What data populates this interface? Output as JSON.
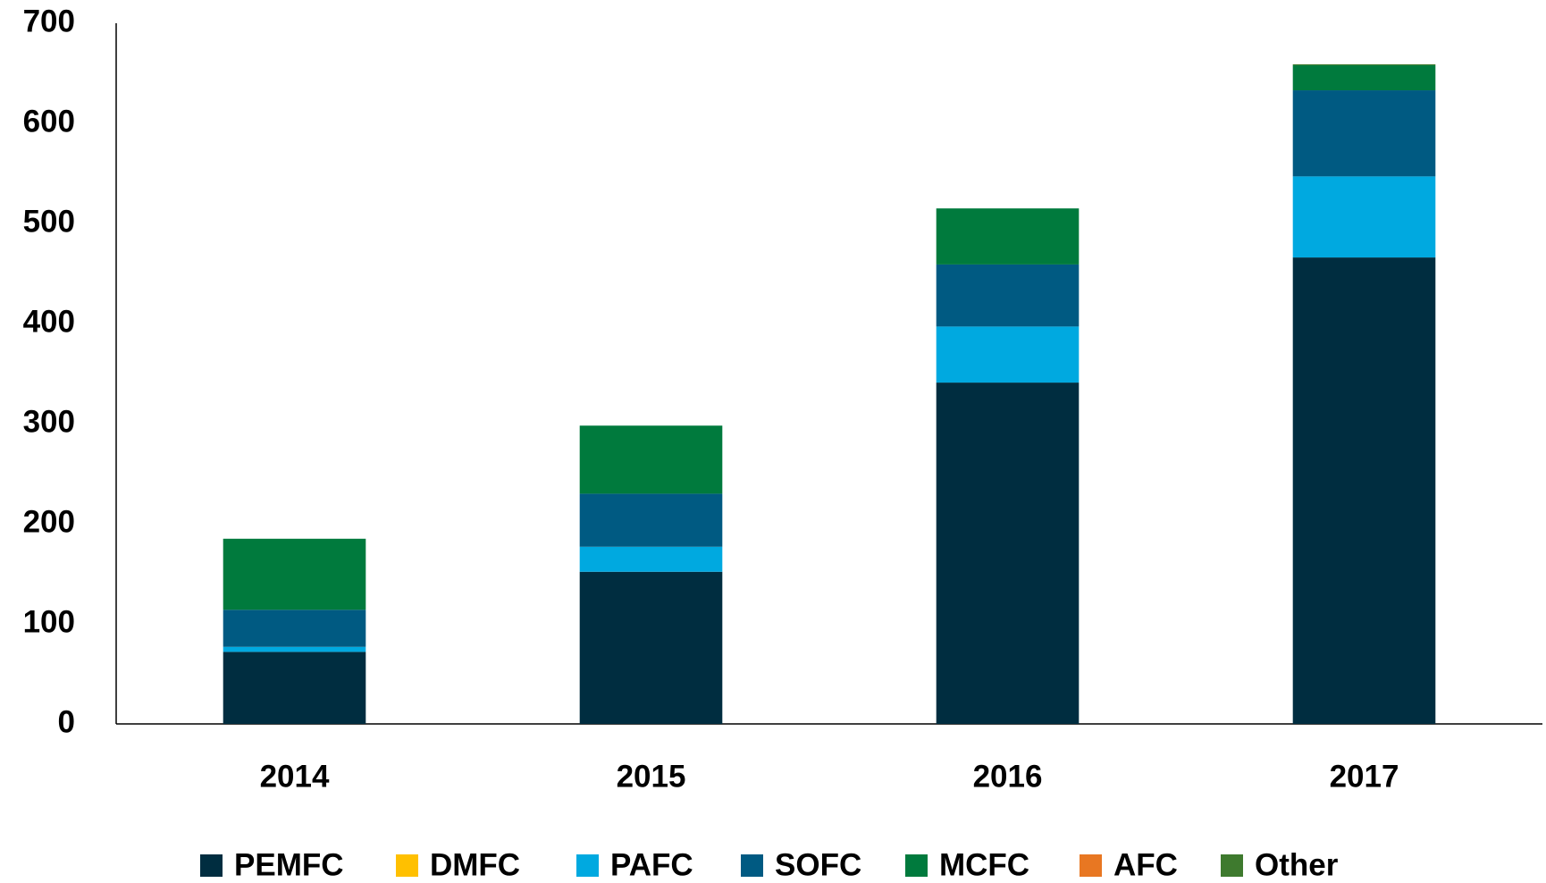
{
  "chart_data": {
    "type": "stacked_bar",
    "categories": [
      "2014",
      "2015",
      "2016",
      "2017"
    ],
    "series": [
      {
        "name": "PEMFC",
        "color": "#002d40",
        "values": [
          72,
          152,
          341,
          466
        ]
      },
      {
        "name": "DMFC",
        "color": "#ffc000",
        "values": [
          0,
          0,
          0,
          0
        ]
      },
      {
        "name": "PAFC",
        "color": "#00a9e0",
        "values": [
          5,
          25,
          56,
          81
        ]
      },
      {
        "name": "SOFC",
        "color": "#005a82",
        "values": [
          37,
          53,
          62,
          86
        ]
      },
      {
        "name": "MCFC",
        "color": "#007a3d",
        "values": [
          71,
          68,
          56,
          25
        ]
      },
      {
        "name": "AFC",
        "color": "#e87722",
        "values": [
          0,
          0,
          0,
          0
        ]
      },
      {
        "name": "Other",
        "color": "#3e7a2e",
        "values": [
          0,
          0,
          0,
          1
        ]
      }
    ],
    "ylim": [
      0,
      700
    ],
    "yticks": [
      0,
      100,
      200,
      300,
      400,
      500,
      600,
      700
    ],
    "grid": false,
    "legend": "bottom"
  }
}
